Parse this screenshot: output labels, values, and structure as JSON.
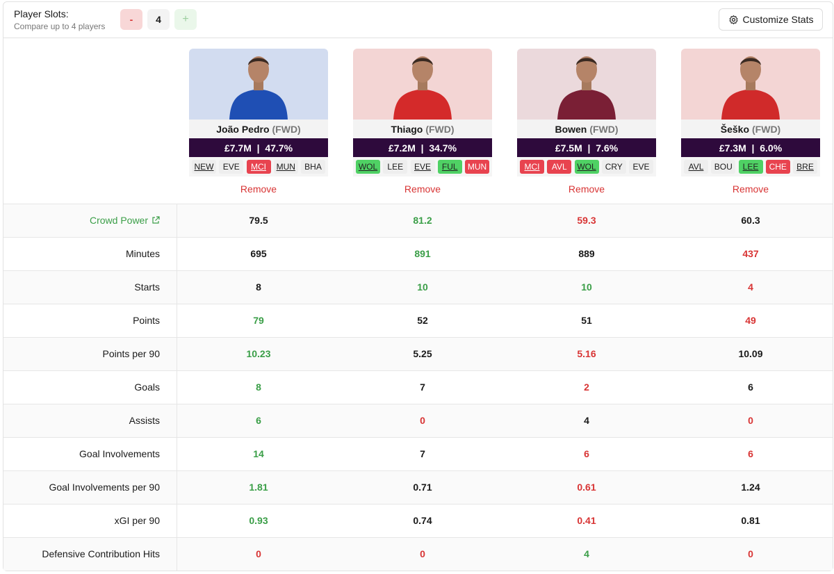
{
  "header": {
    "slots_label": "Player Slots:",
    "slots_hint": "Compare up to 4 players",
    "minus": "-",
    "count": "4",
    "plus": "+",
    "customize": "Customize Stats"
  },
  "players": [
    {
      "name": "João Pedro",
      "position": "(FWD)",
      "price": "£7.7M  |  47.7%",
      "photo_bg": "#d2dcf0",
      "kit": "#1f4fb4",
      "remove": "Remove",
      "fixtures": [
        {
          "team": "NEW",
          "home": true,
          "difficulty": "neutral"
        },
        {
          "team": "EVE",
          "home": false,
          "difficulty": "neutral"
        },
        {
          "team": "MCI",
          "home": true,
          "difficulty": "hard"
        },
        {
          "team": "MUN",
          "home": true,
          "difficulty": "neutral"
        },
        {
          "team": "BHA",
          "home": false,
          "difficulty": "neutral"
        }
      ]
    },
    {
      "name": "Thiago",
      "position": "(FWD)",
      "price": "£7.2M  |  34.7%",
      "photo_bg": "#f3d5d4",
      "kit": "#d42a2a",
      "remove": "Remove",
      "fixtures": [
        {
          "team": "WOL",
          "home": true,
          "difficulty": "easy"
        },
        {
          "team": "LEE",
          "home": false,
          "difficulty": "neutral"
        },
        {
          "team": "EVE",
          "home": true,
          "difficulty": "neutral"
        },
        {
          "team": "FUL",
          "home": true,
          "difficulty": "easy"
        },
        {
          "team": "MUN",
          "home": false,
          "difficulty": "hard"
        }
      ]
    },
    {
      "name": "Bowen",
      "position": "(FWD)",
      "price": "£7.5M  |  7.6%",
      "photo_bg": "#ebd9dc",
      "kit": "#7a1f35",
      "remove": "Remove",
      "fixtures": [
        {
          "team": "MCI",
          "home": true,
          "difficulty": "hard"
        },
        {
          "team": "AVL",
          "home": false,
          "difficulty": "hard"
        },
        {
          "team": "WOL",
          "home": true,
          "difficulty": "easy"
        },
        {
          "team": "CRY",
          "home": false,
          "difficulty": "neutral"
        },
        {
          "team": "EVE",
          "home": false,
          "difficulty": "neutral"
        }
      ]
    },
    {
      "name": "Šeško",
      "position": "(FWD)",
      "price": "£7.3M  |  6.0%",
      "photo_bg": "#f3d5d4",
      "kit": "#d02a2a",
      "remove": "Remove",
      "fixtures": [
        {
          "team": "AVL",
          "home": true,
          "difficulty": "neutral"
        },
        {
          "team": "BOU",
          "home": false,
          "difficulty": "neutral"
        },
        {
          "team": "LEE",
          "home": true,
          "difficulty": "easy"
        },
        {
          "team": "CHE",
          "home": false,
          "difficulty": "hard"
        },
        {
          "team": "BRE",
          "home": true,
          "difficulty": "neutral"
        }
      ]
    }
  ],
  "stats": {
    "rows": [
      {
        "label": "Crowd Power",
        "link": true,
        "cells": [
          {
            "value": "79.5",
            "tone": "neutral"
          },
          {
            "value": "81.2",
            "tone": "good"
          },
          {
            "value": "59.3",
            "tone": "bad"
          },
          {
            "value": "60.3",
            "tone": "neutral"
          }
        ]
      },
      {
        "label": "Minutes",
        "link": false,
        "cells": [
          {
            "value": "695",
            "tone": "neutral"
          },
          {
            "value": "891",
            "tone": "good"
          },
          {
            "value": "889",
            "tone": "neutral"
          },
          {
            "value": "437",
            "tone": "bad"
          }
        ]
      },
      {
        "label": "Starts",
        "link": false,
        "cells": [
          {
            "value": "8",
            "tone": "neutral"
          },
          {
            "value": "10",
            "tone": "good"
          },
          {
            "value": "10",
            "tone": "good"
          },
          {
            "value": "4",
            "tone": "bad"
          }
        ]
      },
      {
        "label": "Points",
        "link": false,
        "cells": [
          {
            "value": "79",
            "tone": "good"
          },
          {
            "value": "52",
            "tone": "neutral"
          },
          {
            "value": "51",
            "tone": "neutral"
          },
          {
            "value": "49",
            "tone": "bad"
          }
        ]
      },
      {
        "label": "Points per 90",
        "link": false,
        "cells": [
          {
            "value": "10.23",
            "tone": "good"
          },
          {
            "value": "5.25",
            "tone": "neutral"
          },
          {
            "value": "5.16",
            "tone": "bad"
          },
          {
            "value": "10.09",
            "tone": "neutral"
          }
        ]
      },
      {
        "label": "Goals",
        "link": false,
        "cells": [
          {
            "value": "8",
            "tone": "good"
          },
          {
            "value": "7",
            "tone": "neutral"
          },
          {
            "value": "2",
            "tone": "bad"
          },
          {
            "value": "6",
            "tone": "neutral"
          }
        ]
      },
      {
        "label": "Assists",
        "link": false,
        "cells": [
          {
            "value": "6",
            "tone": "good"
          },
          {
            "value": "0",
            "tone": "bad"
          },
          {
            "value": "4",
            "tone": "neutral"
          },
          {
            "value": "0",
            "tone": "bad"
          }
        ]
      },
      {
        "label": "Goal Involvements",
        "link": false,
        "cells": [
          {
            "value": "14",
            "tone": "good"
          },
          {
            "value": "7",
            "tone": "neutral"
          },
          {
            "value": "6",
            "tone": "bad"
          },
          {
            "value": "6",
            "tone": "bad"
          }
        ]
      },
      {
        "label": "Goal Involvements per 90",
        "link": false,
        "cells": [
          {
            "value": "1.81",
            "tone": "good"
          },
          {
            "value": "0.71",
            "tone": "neutral"
          },
          {
            "value": "0.61",
            "tone": "bad"
          },
          {
            "value": "1.24",
            "tone": "neutral"
          }
        ]
      },
      {
        "label": "xGI per 90",
        "link": false,
        "cells": [
          {
            "value": "0.93",
            "tone": "good"
          },
          {
            "value": "0.74",
            "tone": "neutral"
          },
          {
            "value": "0.41",
            "tone": "bad"
          },
          {
            "value": "0.81",
            "tone": "neutral"
          }
        ]
      },
      {
        "label": "Defensive Contribution Hits",
        "link": false,
        "cells": [
          {
            "value": "0",
            "tone": "bad"
          },
          {
            "value": "0",
            "tone": "bad"
          },
          {
            "value": "4",
            "tone": "good"
          },
          {
            "value": "0",
            "tone": "bad"
          }
        ]
      }
    ]
  }
}
